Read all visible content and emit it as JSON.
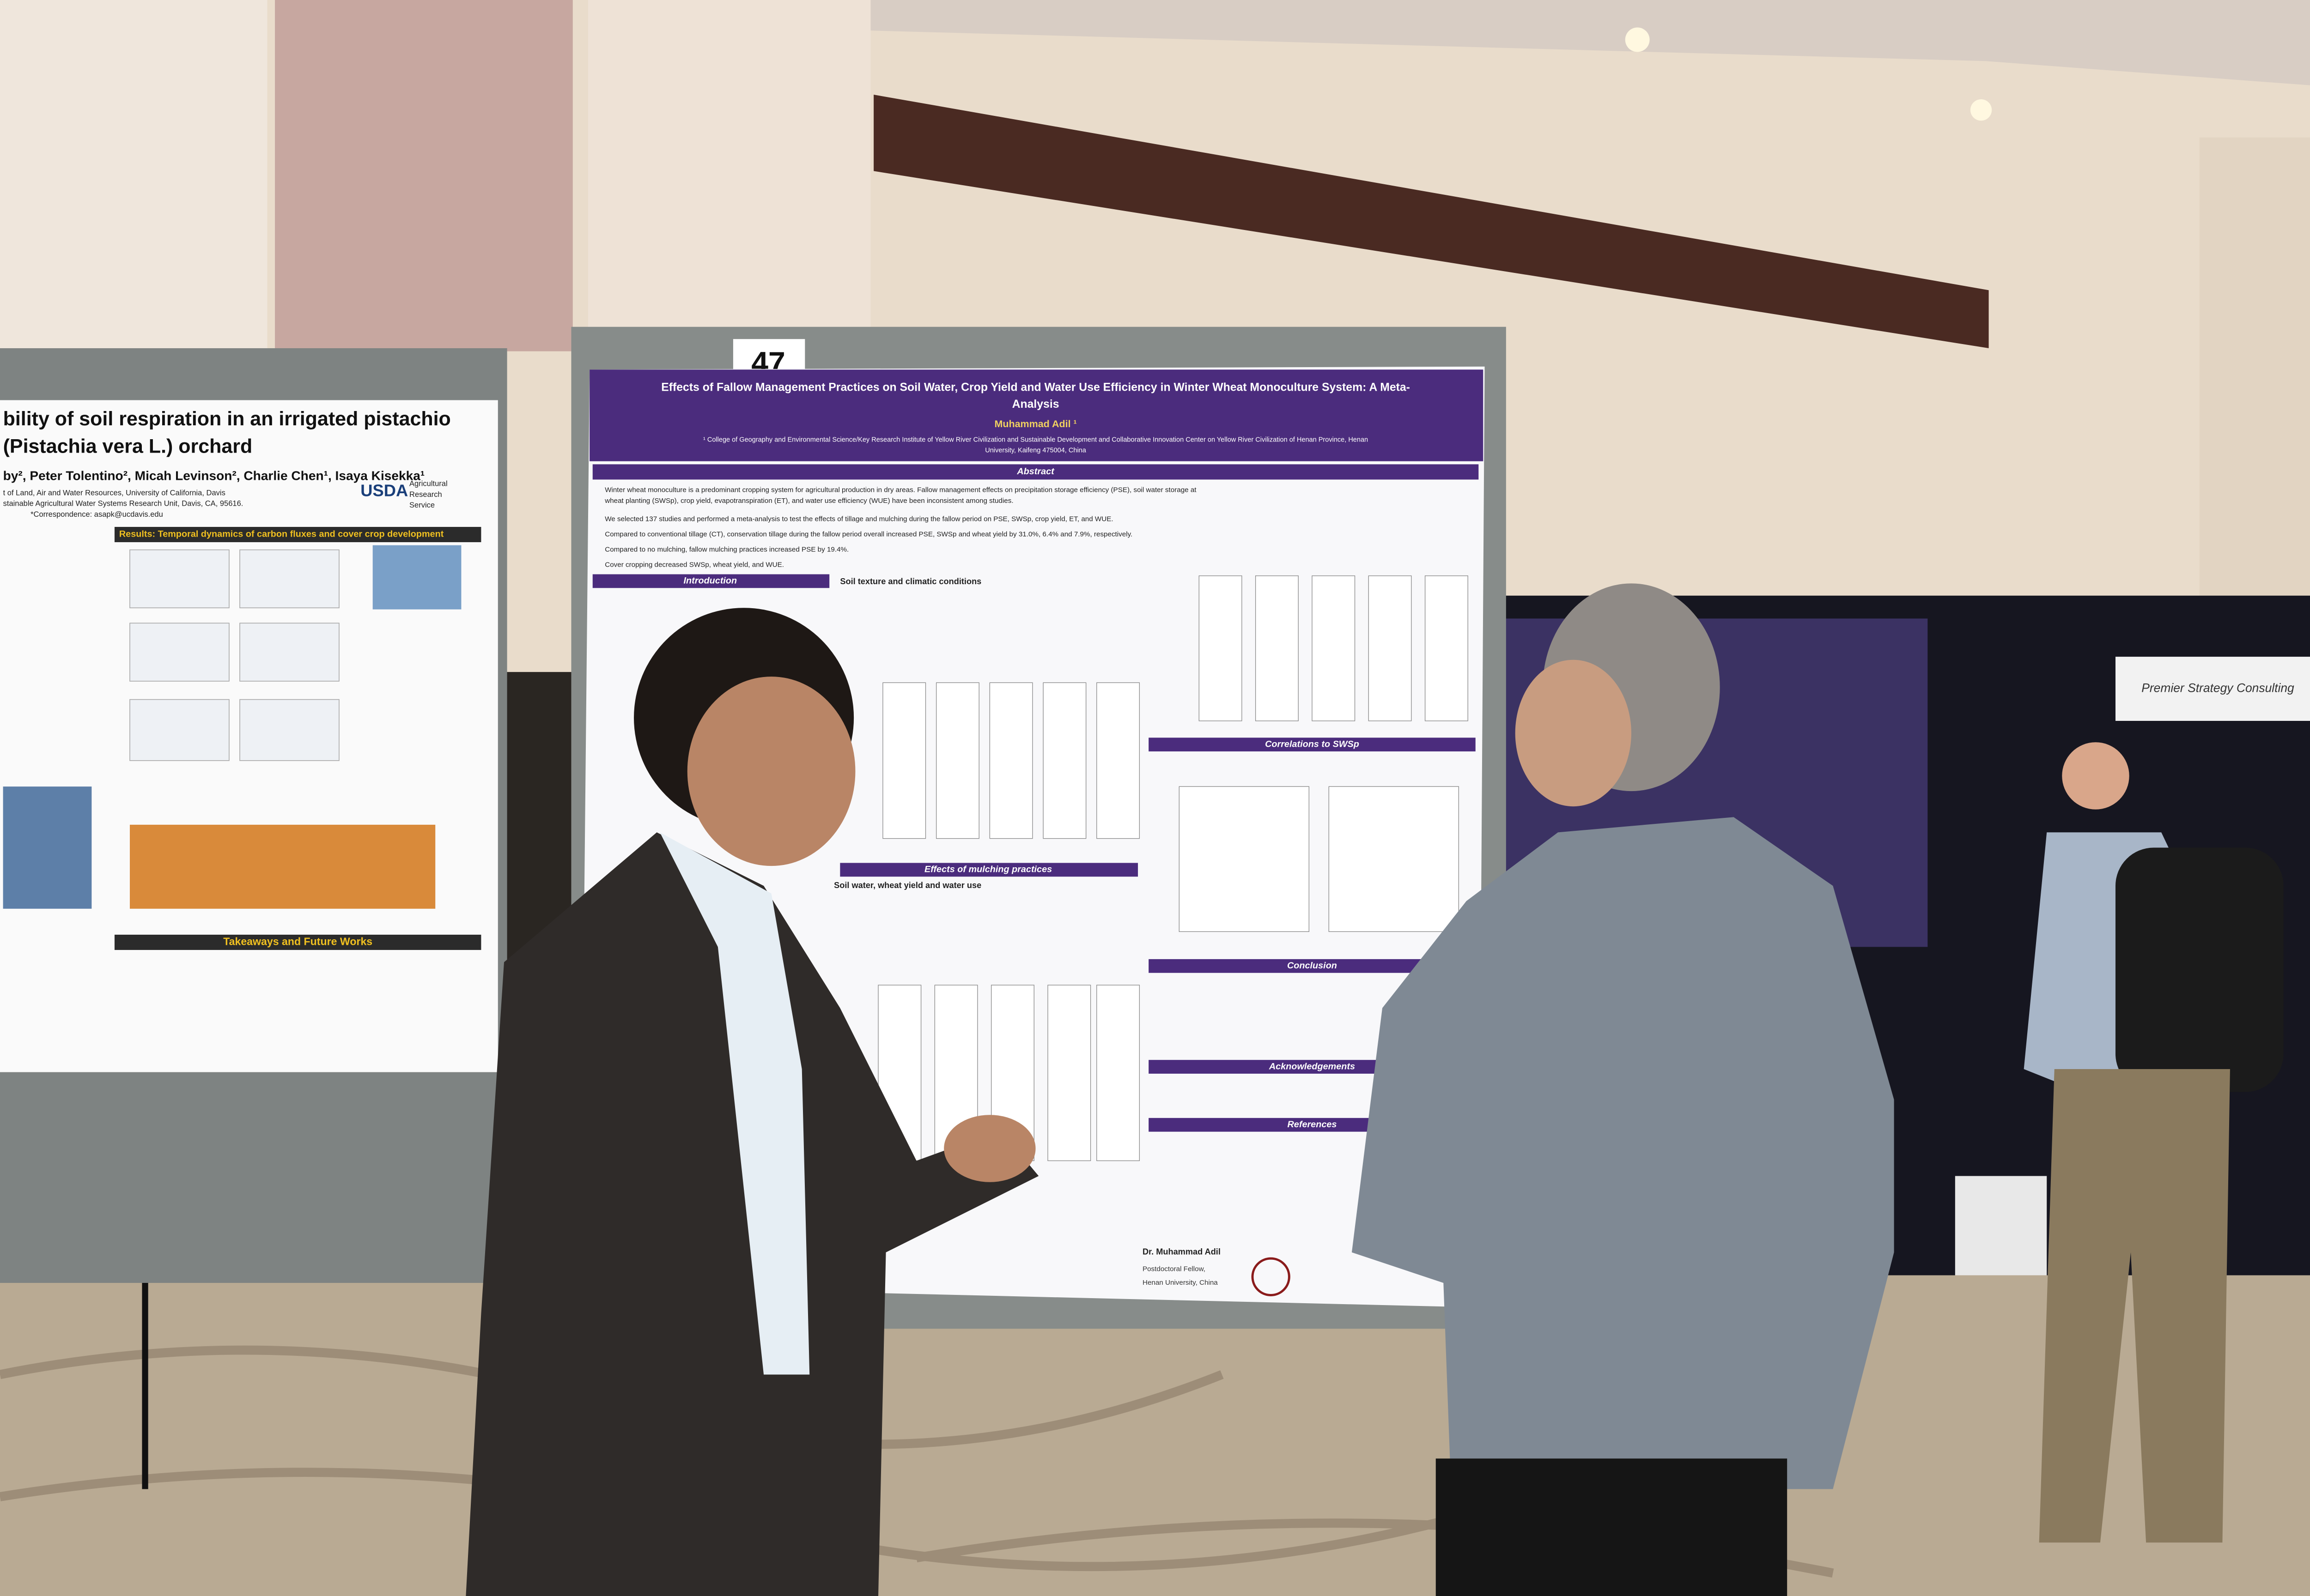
{
  "booth_number": "47",
  "left_poster": {
    "title_lines": [
      "bility of soil respiration in an irrigated pistachio",
      "(Pistachia vera L.) orchard"
    ],
    "authors": "by², Peter Tolentino², Micah Levinson², Charlie Chen¹, Isaya Kisekka¹",
    "affiliations": [
      "t of Land, Air and Water Resources, University of California, Davis",
      "stainable Agricultural Water Systems Research Unit, Davis, CA, 95616.",
      "*Correspondence: asapk@ucdavis.edu"
    ],
    "logo": "USDA",
    "logo_sub": [
      "Agricultural",
      "Research",
      "Service"
    ],
    "results_header": "Results: Temporal dynamics of carbon fluxes and cover crop development",
    "takeaways_header": "Takeaways and Future Works"
  },
  "main_poster": {
    "title_lines": [
      "Effects of Fallow Management Practices on Soil Water, Crop Yield and Water Use Efficiency in Winter Wheat Monoculture System: A Meta-",
      "Analysis"
    ],
    "author": "Muhammad Adil ¹",
    "affiliation_lines": [
      "¹ College of Geography and Environmental Science/Key Research Institute of Yellow River Civilization and Sustainable Development and Collaborative Innovation Center on Yellow River Civilization of Henan Province, Henan",
      "University, Kaifeng 475004, China"
    ],
    "abstract_header": "Abstract",
    "abstract_lines": [
      "Winter wheat monoculture is a predominant cropping system for agricultural production in dry areas. Fallow management effects on precipitation storage efficiency (PSE), soil water storage at",
      "wheat planting (SWSp), crop yield, evapotranspiration (ET), and water use efficiency (WUE) have been inconsistent among studies.",
      "We selected 137 studies and performed a meta-analysis to test the effects of tillage and mulching during the fallow period on PSE, SWSp, crop yield, ET, and WUE.",
      "Compared to conventional tillage (CT), conservation tillage during the fallow period overall increased PSE, SWSp and wheat yield by 31.0%, 6.4% and 7.9%, respectively.",
      "Compared to no mulching, fallow mulching practices increased PSE by 19.4%.",
      "Cover cropping decreased SWSp, wheat yield, and WUE."
    ],
    "section_headers": [
      "Introduction",
      "Soil texture and climatic conditions",
      "Effects of mulching practices",
      "Soil water, wheat yield and water use",
      "Correlations to SWSp",
      "Conclusion",
      "Acknowledgements",
      "References"
    ],
    "contact_lines": [
      "Dr. Muhammad Adil",
      "Postdoctoral Fellow,",
      "Henan University, China"
    ]
  },
  "sign": "Premier Strategy Consulting"
}
